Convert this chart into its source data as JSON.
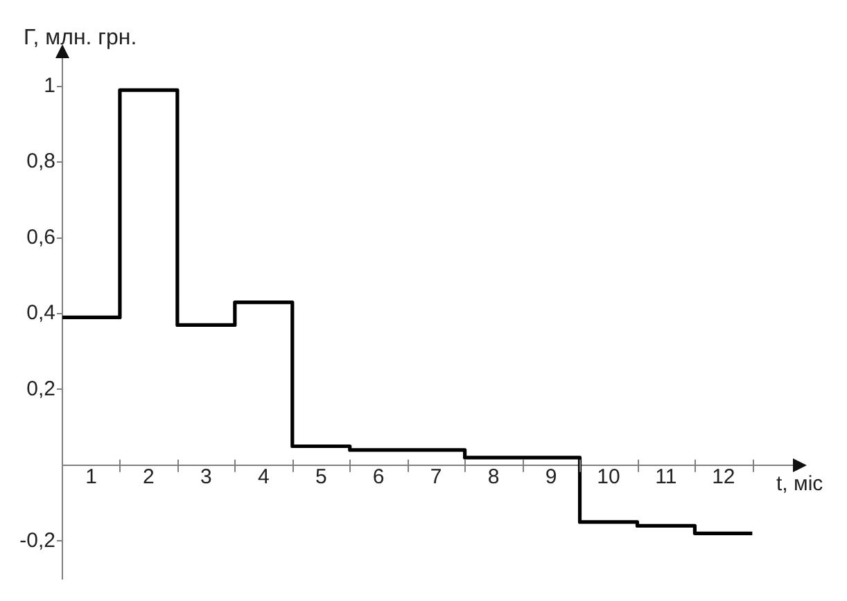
{
  "chart_data": {
    "type": "line",
    "xlabel": "t, міс",
    "ylabel": "Г, млн. грн.",
    "x": [
      0.5,
      1.5,
      1.5,
      2.5,
      2.5,
      3.5,
      3.5,
      4.5,
      4.5,
      5.5,
      5.5,
      7.5,
      7.5,
      9.5,
      9.5,
      10.5,
      10.5,
      11.5,
      11.5,
      12.5
    ],
    "values": [
      0.39,
      0.39,
      0.99,
      0.99,
      0.37,
      0.37,
      0.43,
      0.43,
      0.05,
      0.05,
      0.04,
      0.04,
      0.02,
      0.02,
      -0.15,
      -0.15,
      -0.16,
      -0.16,
      -0.18,
      -0.18
    ],
    "color": "#000000",
    "xlim": [
      0.5,
      13.4
    ],
    "ylim": [
      -0.3,
      1.1
    ],
    "xticks": [
      1,
      {
        "value": 1.5,
        "label": null
      },
      2,
      {
        "value": 2.5,
        "label": null
      },
      3,
      {
        "value": 3.5,
        "label": null
      },
      4,
      {
        "value": 4.5,
        "label": null
      },
      5,
      {
        "value": 5.5,
        "label": null
      },
      6,
      {
        "value": 6.5,
        "label": null
      },
      7,
      {
        "value": 7.5,
        "label": null
      },
      8,
      {
        "value": 8.5,
        "label": null
      },
      9,
      {
        "value": 9.5,
        "label": null
      },
      10,
      {
        "value": 10.5,
        "label": null
      },
      11,
      {
        "value": 11.5,
        "label": null
      },
      12,
      {
        "value": 12.5,
        "label": null
      }
    ],
    "yticks": [
      {
        "value": -0.2,
        "label": "-0,2"
      },
      {
        "value": 0.2,
        "label": "0,2"
      },
      {
        "value": 0.4,
        "label": "0,4"
      },
      {
        "value": 0.6,
        "label": "0,6"
      },
      {
        "value": 0.8,
        "label": "0,8"
      },
      1
    ]
  }
}
